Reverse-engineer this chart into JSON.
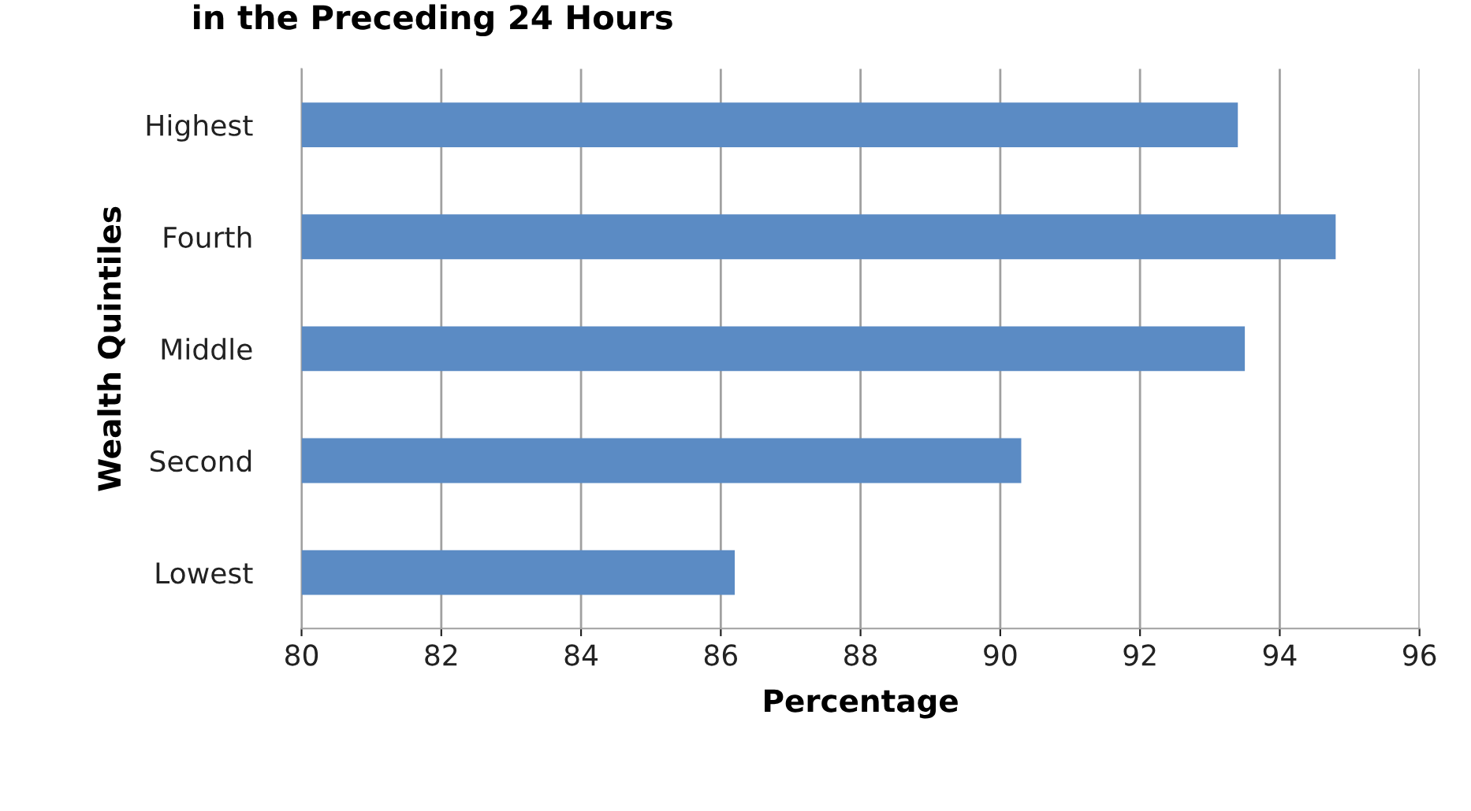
{
  "chart_data": {
    "type": "bar",
    "orientation": "horizontal",
    "title": "in the Preceding 24 Hours",
    "xlabel": "Percentage",
    "ylabel": "Wealth Quintiles",
    "categories": [
      "Highest",
      "Fourth",
      "Middle",
      "Second",
      "Lowest"
    ],
    "values": [
      93.4,
      94.8,
      93.5,
      90.3,
      86.2
    ],
    "color": "#5b8bc4",
    "xlim": [
      80,
      96
    ],
    "xticks": [
      80,
      82,
      84,
      86,
      88,
      90,
      92,
      94,
      96
    ],
    "grid": "x"
  }
}
